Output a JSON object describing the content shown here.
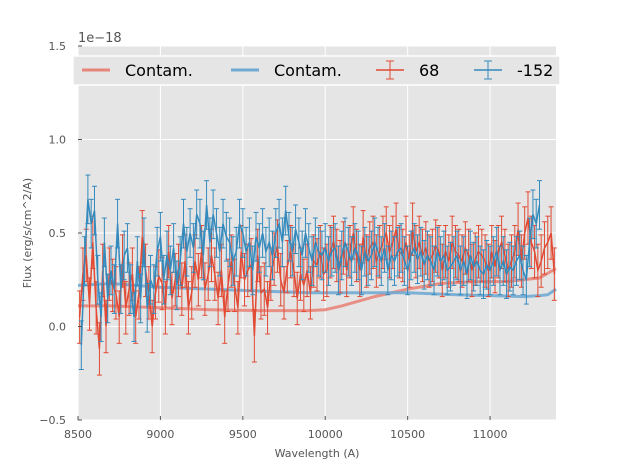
{
  "chart_data": {
    "type": "line",
    "xlabel": "Wavelength (A)",
    "ylabel": "Flux (erg/s/cm^2/A)",
    "offset_text": "1e−18",
    "xlim": [
      8500,
      11400
    ],
    "ylim": [
      -0.5,
      1.5
    ],
    "x_ticks": [
      8500,
      9000,
      9500,
      10000,
      10500,
      11000
    ],
    "x_tick_labels": [
      "8500",
      "9000",
      "9500",
      "10000",
      "10500",
      "11000"
    ],
    "y_ticks": [
      -0.5,
      0.0,
      0.5,
      1.0,
      1.5
    ],
    "y_tick_labels": [
      "−0.5",
      "0.0",
      "0.5",
      "1.0",
      "1.5"
    ],
    "grid": true,
    "legend_placement": "top",
    "colors": {
      "red": "#e24a33",
      "blue": "#348abd",
      "contam_red": "#e8857a",
      "contam_blue": "#70aad1",
      "background": "#e5e5e5"
    },
    "legend": [
      {
        "label": "Contam.",
        "kind": "line",
        "color": "#e8857a"
      },
      {
        "label": "Contam.",
        "kind": "line",
        "color": "#70aad1"
      },
      {
        "label": "68",
        "kind": "errorbar",
        "color": "#e24a33"
      },
      {
        "label": "-152",
        "kind": "errorbar",
        "color": "#348abd"
      }
    ],
    "contamination": [
      {
        "color": "#e8857a",
        "x": [
          8500,
          8700,
          9000,
          9300,
          9600,
          9900,
          10000,
          10100,
          10300,
          10500,
          10700,
          10900,
          11100,
          11300,
          11400
        ],
        "y": [
          0.11,
          0.11,
          0.1,
          0.09,
          0.085,
          0.085,
          0.09,
          0.11,
          0.16,
          0.2,
          0.23,
          0.24,
          0.24,
          0.26,
          0.31
        ]
      },
      {
        "color": "#70aad1",
        "x": [
          8500,
          8700,
          9000,
          9300,
          9600,
          9900,
          10200,
          10500,
          10800,
          11000,
          11200,
          11300,
          11350,
          11400
        ],
        "y": [
          0.22,
          0.23,
          0.21,
          0.2,
          0.19,
          0.18,
          0.18,
          0.18,
          0.17,
          0.165,
          0.16,
          0.165,
          0.17,
          0.2
        ]
      }
    ],
    "series": [
      {
        "name": "68",
        "color": "#e24a33",
        "x_start": 8510,
        "x_step": 20,
        "err": 0.14,
        "values": [
          0.05,
          0.28,
          0.38,
          0.12,
          0.45,
          0.1,
          -0.12,
          0.3,
          0.0,
          0.28,
          0.22,
          0.18,
          0.05,
          0.35,
          0.1,
          0.2,
          0.28,
          0.05,
          0.18,
          0.48,
          0.3,
          0.18,
          0.0,
          0.18,
          0.27,
          0.23,
          0.1,
          0.4,
          0.15,
          0.25,
          0.3,
          0.2,
          0.35,
          0.1,
          0.18,
          0.35,
          0.25,
          0.4,
          0.2,
          0.28,
          0.38,
          0.28,
          0.15,
          0.3,
          0.05,
          0.22,
          0.35,
          0.22,
          0.1,
          0.4,
          0.25,
          0.3,
          0.33,
          -0.05,
          0.38,
          0.18,
          0.2,
          0.1,
          0.28,
          0.36,
          0.43,
          0.25,
          0.18,
          0.32,
          0.4,
          0.3,
          0.15,
          0.28,
          0.22,
          0.3,
          0.18,
          0.35,
          0.33,
          0.4,
          0.28,
          0.3,
          0.4,
          0.45,
          0.38,
          0.32,
          0.42,
          0.3,
          0.4,
          0.5,
          0.38,
          0.3,
          0.48,
          0.35,
          0.42,
          0.45,
          0.35,
          0.4,
          0.45,
          0.5,
          0.4,
          0.45,
          0.52,
          0.4,
          0.38,
          0.45,
          0.35,
          0.52,
          0.4,
          0.45,
          0.38,
          0.42,
          0.35,
          0.38,
          0.43,
          0.4,
          0.3,
          0.4,
          0.35,
          0.45,
          0.4,
          0.38,
          0.35,
          0.42,
          0.38,
          0.3,
          0.36,
          0.4,
          0.38,
          0.35,
          0.3,
          0.4,
          0.32,
          0.4,
          0.45,
          0.38,
          0.3,
          0.35,
          0.4,
          0.52,
          0.35,
          0.5,
          0.58,
          0.45,
          0.4,
          0.3,
          0.35,
          0.42,
          0.45,
          0.5,
          0.28
        ]
      },
      {
        "name": "-152",
        "color": "#348abd",
        "x_start": 8520,
        "x_step": 20,
        "err": 0.13,
        "values": [
          -0.1,
          0.35,
          0.68,
          0.55,
          0.62,
          0.25,
          0.05,
          0.45,
          0.15,
          0.3,
          0.2,
          0.55,
          0.2,
          0.38,
          0.42,
          0.2,
          0.05,
          0.35,
          0.15,
          0.45,
          0.1,
          0.25,
          0.2,
          0.4,
          0.48,
          0.25,
          0.38,
          0.3,
          0.42,
          0.22,
          0.35,
          0.55,
          0.4,
          0.5,
          0.42,
          0.6,
          0.55,
          0.38,
          0.65,
          0.45,
          0.6,
          0.5,
          0.4,
          0.55,
          0.48,
          0.45,
          0.35,
          0.4,
          0.55,
          0.5,
          0.4,
          0.45,
          0.3,
          0.48,
          0.42,
          0.5,
          0.4,
          0.45,
          0.38,
          0.5,
          0.55,
          0.45,
          0.62,
          0.48,
          0.4,
          0.52,
          0.45,
          0.38,
          0.5,
          0.42,
          0.35,
          0.45,
          0.4,
          0.38,
          0.42,
          0.35,
          0.4,
          0.42,
          0.3,
          0.38,
          0.45,
          0.4,
          0.35,
          0.42,
          0.38,
          0.3,
          0.4,
          0.35,
          0.38,
          0.45,
          0.4,
          0.35,
          0.42,
          0.3,
          0.38,
          0.35,
          0.4,
          0.42,
          0.35,
          0.3,
          0.38,
          0.42,
          0.36,
          0.4,
          0.33,
          0.38,
          0.35,
          0.3,
          0.4,
          0.35,
          0.38,
          0.3,
          0.32,
          0.35,
          0.38,
          0.3,
          0.35,
          0.28,
          0.38,
          0.32,
          0.35,
          0.3,
          0.28,
          0.33,
          0.3,
          0.35,
          0.4,
          0.3,
          0.35,
          0.28,
          0.32,
          0.3,
          0.35,
          0.38,
          0.3,
          0.25,
          0.45,
          0.6,
          0.55,
          0.65
        ]
      }
    ]
  }
}
